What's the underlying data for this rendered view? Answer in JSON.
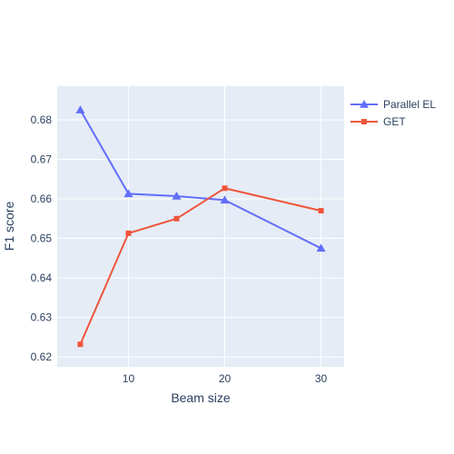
{
  "chart_data": {
    "type": "line",
    "title": "",
    "xlabel": "Beam size",
    "ylabel": "F1 score",
    "x": [
      5,
      10,
      15,
      20,
      30
    ],
    "xlim": [
      2.6,
      32.4
    ],
    "ylim": [
      0.6175,
      0.6885
    ],
    "xticks": [
      10,
      20,
      30
    ],
    "yticks": [
      0.62,
      0.63,
      0.64,
      0.65,
      0.66,
      0.67,
      0.68
    ],
    "grid": true,
    "legend_position": "top-right",
    "plot_background": "#e5ecf6",
    "series": [
      {
        "name": "Parallel EL",
        "color": "#636efa",
        "marker": "triangle-up",
        "values": [
          0.6825,
          0.6613,
          0.6607,
          0.6597,
          0.6475
        ]
      },
      {
        "name": "GET",
        "color": "#ef553b",
        "marker": "square",
        "values": [
          0.6232,
          0.6513,
          0.655,
          0.6627,
          0.657
        ]
      }
    ]
  }
}
